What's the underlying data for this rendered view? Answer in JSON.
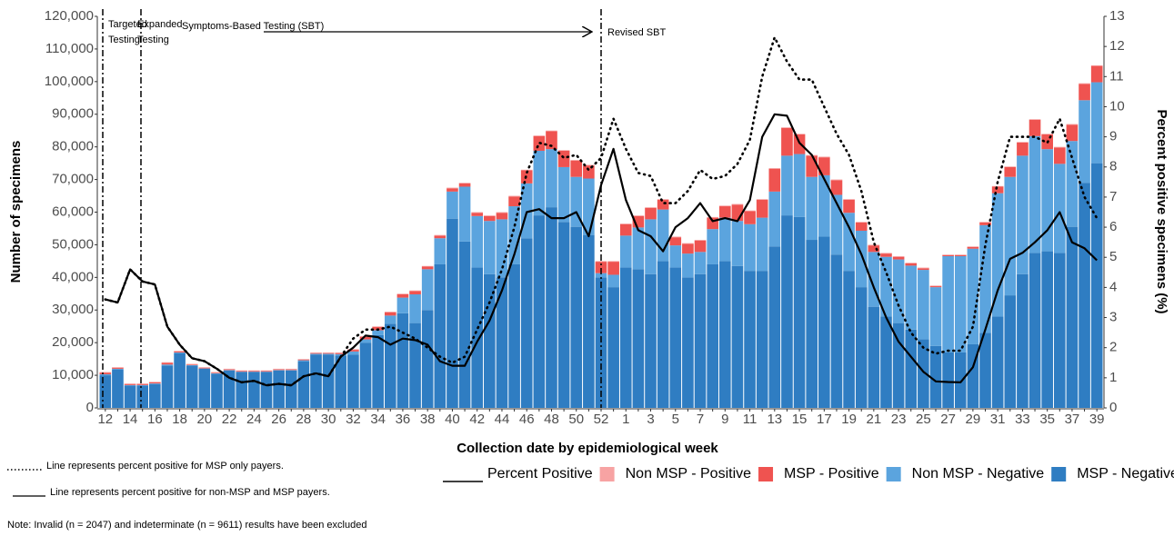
{
  "chart_data": {
    "type": "bar",
    "stacked": true,
    "x_label": "Collection date by epidemiological week",
    "y_label": "Number of specimens",
    "y2_label": "Percent positive specimens (%)",
    "categories": [
      "12",
      null,
      "14",
      null,
      "16",
      null,
      "18",
      null,
      "20",
      null,
      "22",
      null,
      "24",
      null,
      "26",
      null,
      "28",
      null,
      "30",
      null,
      "32",
      null,
      "34",
      null,
      "36",
      null,
      "38",
      null,
      "40",
      null,
      "42",
      null,
      "44",
      null,
      "46",
      null,
      "48",
      null,
      "50",
      null,
      "52",
      null,
      "1",
      null,
      "3",
      null,
      "5",
      null,
      "7",
      null,
      "9",
      null,
      "11",
      null,
      "13",
      null,
      "15",
      null,
      "17",
      null,
      "19",
      null,
      "21",
      null,
      "23",
      null,
      "25",
      null,
      "27",
      null,
      "29",
      null,
      "31",
      null,
      "33",
      null,
      "35",
      null,
      "37",
      null,
      "39"
    ],
    "ylim": [
      0,
      120000
    ],
    "yticks": [
      0,
      {
        "value": 10000,
        "label": "10,000"
      },
      {
        "value": 20000,
        "label": "20,000"
      },
      {
        "value": 30000,
        "label": "30,000"
      },
      {
        "value": 40000,
        "label": "40,000"
      },
      {
        "value": 50000,
        "label": "50,000"
      },
      {
        "value": 60000,
        "label": "60,000"
      },
      {
        "value": 70000,
        "label": "70,000"
      },
      {
        "value": 80000,
        "label": "80,000"
      },
      {
        "value": 90000,
        "label": "90,000"
      },
      {
        "value": 100000,
        "label": "100,000"
      },
      {
        "value": 110000,
        "label": "110,000"
      },
      {
        "value": 120000,
        "label": "120,000"
      }
    ],
    "y2lim": [
      0,
      13
    ],
    "y2ticks": [
      0,
      1,
      2,
      3,
      4,
      5,
      6,
      7,
      8,
      9,
      10,
      11,
      12,
      13
    ],
    "grid": false,
    "legend": "bottom-right",
    "series": [
      {
        "name": "Percent Positive",
        "type": "line",
        "axis": "y2",
        "color": "#000000",
        "dash": "solid",
        "values": [
          3.6,
          3.5,
          4.6,
          4.2,
          4.1,
          2.7,
          2.1,
          1.65,
          1.55,
          1.3,
          1.0,
          0.85,
          0.9,
          0.75,
          0.8,
          0.75,
          1.05,
          1.15,
          1.05,
          1.7,
          2.0,
          2.4,
          2.35,
          2.1,
          2.3,
          2.25,
          2.1,
          1.55,
          1.4,
          1.4,
          2.2,
          2.9,
          3.9,
          5.1,
          6.5,
          6.6,
          6.3,
          6.3,
          6.5,
          5.7,
          7.4,
          8.6,
          6.9,
          5.9,
          5.7,
          5.2,
          6.0,
          6.3,
          6.8,
          6.2,
          6.3,
          6.2,
          6.9,
          9.0,
          9.75,
          9.7,
          8.8,
          8.4,
          7.6,
          6.8,
          6.0,
          5.1,
          4.0,
          3.0,
          2.2,
          1.7,
          1.2,
          0.88,
          0.86,
          0.85,
          1.35,
          2.6,
          3.9,
          4.95,
          5.15,
          5.5,
          5.9,
          6.5,
          5.5,
          5.3,
          4.9
        ]
      },
      {
        "name": "Non MSP - Positive",
        "type": "bar",
        "color": "#f7a3a3",
        "values": [
          200,
          200,
          200,
          200,
          200,
          200,
          200,
          200,
          200,
          200,
          200,
          200,
          200,
          200,
          200,
          200,
          200,
          200,
          200,
          200,
          200,
          200,
          200,
          200,
          200,
          200,
          200,
          200,
          200,
          200,
          200,
          200,
          200,
          200,
          200,
          200,
          200,
          200,
          200,
          200,
          200,
          200,
          200,
          200,
          200,
          200,
          200,
          200,
          200,
          200,
          200,
          200,
          200,
          200,
          200,
          200,
          200,
          200,
          200,
          200,
          200,
          200,
          200,
          200,
          200,
          200,
          200,
          200,
          200,
          200,
          200,
          200,
          200,
          200,
          200,
          200,
          200,
          200,
          200,
          200,
          200
        ]
      },
      {
        "name": "MSP - Positive",
        "type": "bar",
        "color": "#ef5350",
        "values": [
          500,
          300,
          300,
          300,
          300,
          500,
          300,
          200,
          200,
          200,
          200,
          200,
          200,
          200,
          200,
          200,
          200,
          200,
          200,
          300,
          500,
          800,
          1000,
          1000,
          1000,
          1000,
          800,
          800,
          1000,
          1000,
          1000,
          1500,
          2000,
          3000,
          4000,
          4500,
          5500,
          5000,
          5000,
          4000,
          3500,
          4000,
          3500,
          3500,
          3500,
          3000,
          2500,
          3000,
          3500,
          3500,
          3500,
          5000,
          4000,
          5500,
          7000,
          8500,
          6000,
          6500,
          5500,
          4500,
          4000,
          2500,
          2000,
          1000,
          800,
          700,
          500,
          300,
          300,
          300,
          500,
          800,
          2000,
          3000,
          4000,
          5000,
          4500,
          5000,
          5000,
          5000,
          5000
        ]
      },
      {
        "name": "Non MSP - Negative",
        "type": "bar",
        "color": "#5ba4de",
        "values": [
          300,
          200,
          200,
          200,
          200,
          300,
          200,
          100,
          100,
          100,
          100,
          100,
          100,
          100,
          100,
          100,
          300,
          300,
          300,
          500,
          1000,
          1000,
          1500,
          2500,
          4800,
          8800,
          12500,
          8000,
          8300,
          16800,
          15800,
          16300,
          17800,
          17800,
          16800,
          19800,
          17800,
          16800,
          15300,
          17300,
          1300,
          3800,
          9800,
          12800,
          16800,
          15800,
          6800,
          7300,
          6800,
          10800,
          13300,
          13800,
          14300,
          16300,
          16800,
          18300,
          19300,
          19300,
          18800,
          18300,
          17800,
          17300,
          16800,
          18300,
          19500,
          19600,
          21300,
          18000,
          29500,
          29500,
          29300,
          33000,
          37800,
          36300,
          36300,
          35800,
          31300,
          27300,
          26300,
          25300,
          24800
        ]
      },
      {
        "name": "MSP - Negative",
        "type": "bar",
        "color": "#2f7dc2",
        "values": [
          10000,
          11800,
          6800,
          6800,
          7300,
          13000,
          16800,
          13000,
          12000,
          10500,
          11500,
          11000,
          11000,
          11000,
          11500,
          11500,
          14300,
          16300,
          16300,
          16000,
          16300,
          20000,
          22300,
          25800,
          29000,
          26000,
          30000,
          44000,
          58000,
          51000,
          43000,
          41000,
          40000,
          44000,
          52000,
          59000,
          61500,
          57000,
          55500,
          53000,
          40000,
          37000,
          43000,
          42500,
          41000,
          45000,
          43000,
          40000,
          41000,
          44000,
          45000,
          43500,
          42000,
          42000,
          49500,
          59000,
          58500,
          51500,
          52500,
          47000,
          42000,
          37000,
          31000,
          28000,
          26000,
          24000,
          21000,
          19000,
          17000,
          17000,
          19500,
          23000,
          28000,
          34500,
          41000,
          47500,
          48000,
          47500,
          55500,
          69000,
          75000
        ]
      },
      {
        "type": "line",
        "axis": "y2",
        "color": "#000000",
        "dash": "dotted",
        "values": [
          3.6,
          3.5,
          4.6,
          4.2,
          4.1,
          2.7,
          2.1,
          1.65,
          1.55,
          1.3,
          1.0,
          0.85,
          0.9,
          0.75,
          0.8,
          0.75,
          1.05,
          1.15,
          1.05,
          1.7,
          2.3,
          2.6,
          2.6,
          2.7,
          2.5,
          2.3,
          2.0,
          1.7,
          1.5,
          1.7,
          2.6,
          3.5,
          4.6,
          6.0,
          7.8,
          8.8,
          8.7,
          8.3,
          8.4,
          7.9,
          8.3,
          9.6,
          8.6,
          7.8,
          7.7,
          6.8,
          6.8,
          7.2,
          7.9,
          7.6,
          7.7,
          8.1,
          8.9,
          11.0,
          12.3,
          11.5,
          10.9,
          10.9,
          10.0,
          9.1,
          8.4,
          7.2,
          5.5,
          4.5,
          3.4,
          2.5,
          2.0,
          1.8,
          1.9,
          1.9,
          2.7,
          5.4,
          7.5,
          9.0,
          9.0,
          9.0,
          8.8,
          9.6,
          8.3,
          7.0,
          6.3
        ]
      }
    ],
    "annotations": [
      {
        "label": [
          "Targeted",
          "Testing"
        ]
      },
      {
        "label": [
          "Expanded",
          "Testing"
        ]
      },
      {
        "label": [
          "Symptoms-Based Testing (SBT)"
        ]
      },
      {
        "label": [
          "Revised SBT"
        ]
      }
    ],
    "line_notes": [
      "Line represents percent positive for MSP only payers.",
      "Line represents percent positive for non-MSP and MSP payers."
    ],
    "note": "Note: Invalid (n = 2047) and indeterminate (n = 9611) results have been excluded"
  }
}
